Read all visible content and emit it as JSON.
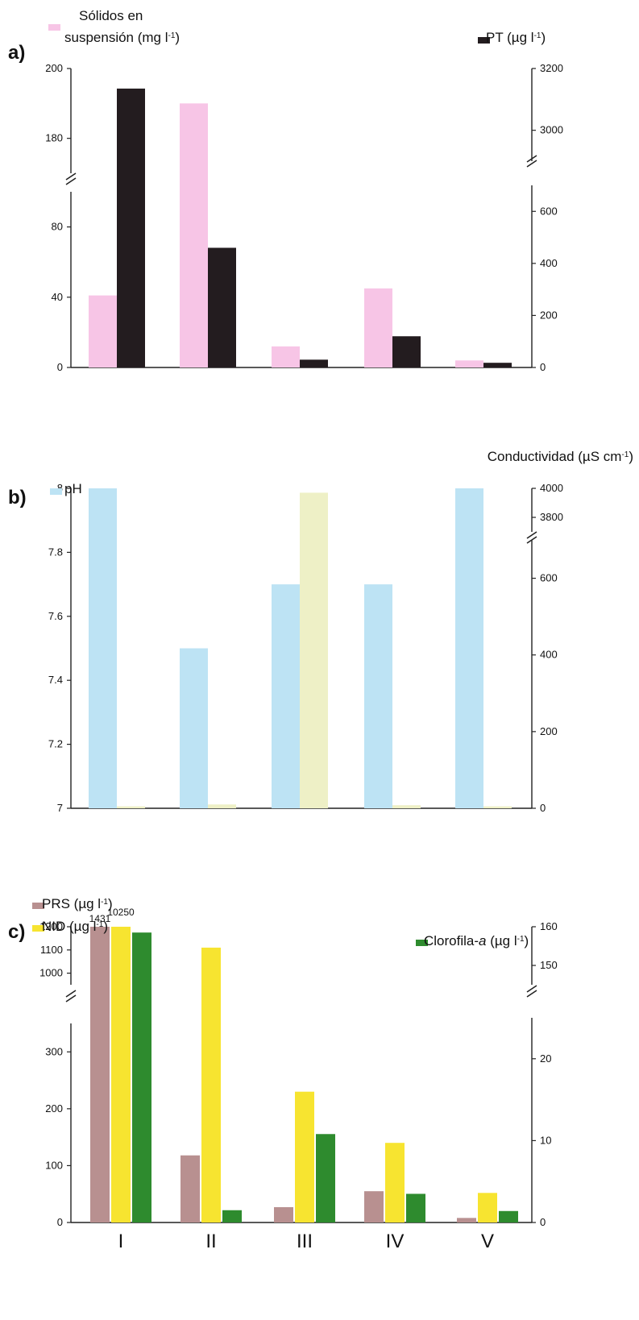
{
  "chart_data": [
    {
      "panel": "a)",
      "type": "bar",
      "categories": [
        "I",
        "II",
        "III",
        "IV",
        "V"
      ],
      "left_axis": {
        "segments": [
          [
            0,
            100
          ],
          [
            170,
            200
          ]
        ],
        "ticks": [
          0,
          40,
          80,
          180,
          200
        ],
        "broken": true
      },
      "right_axis": {
        "segments": [
          [
            0,
            700
          ],
          [
            2900,
            3200
          ]
        ],
        "ticks": [
          0,
          200,
          400,
          600,
          3000,
          3200
        ],
        "broken": true
      },
      "series": [
        {
          "name_line1": "Sólidos en",
          "name_line2": "suspensión (mg l",
          "name_sup": "-1",
          "name_end": ")",
          "axis": "left",
          "color": "#f7c5e6",
          "values": [
            41,
            190,
            12,
            45,
            4
          ]
        },
        {
          "name": "PT (µg l",
          "name_sup": "-1",
          "name_end": ")",
          "axis": "right",
          "color": "#231c1f",
          "values": [
            3135,
            460,
            30,
            120,
            18
          ]
        }
      ]
    },
    {
      "panel": "b)",
      "type": "bar",
      "categories": [
        "I",
        "II",
        "III",
        "IV",
        "V"
      ],
      "left_axis": {
        "segments": [
          [
            7,
            8
          ]
        ],
        "ticks": [
          "7",
          "7.2",
          "7.4",
          "7.6",
          "7.8",
          "8"
        ],
        "broken": false
      },
      "right_axis": {
        "segments": [
          [
            0,
            700
          ],
          [
            3700,
            4000
          ]
        ],
        "ticks": [
          0,
          200,
          400,
          600,
          3800,
          4000
        ],
        "broken": true
      },
      "series": [
        {
          "name": "pH",
          "axis": "left",
          "color": "#bde3f4",
          "values": [
            8.0,
            7.5,
            7.7,
            7.7,
            8.0
          ]
        },
        {
          "name": "Conductividad (µS cm",
          "name_sup": "-1",
          "name_end": ")",
          "axis": "right",
          "color": "#eef0c6",
          "values": [
            5,
            10,
            3970,
            8,
            5
          ]
        }
      ]
    },
    {
      "panel": "c)",
      "type": "bar",
      "categories": [
        "I",
        "II",
        "III",
        "IV",
        "V"
      ],
      "left_axis": {
        "segments": [
          [
            0,
            350
          ],
          [
            950,
            1200
          ]
        ],
        "ticks": [
          0,
          100,
          200,
          300,
          1000,
          1100,
          1200
        ],
        "broken": true
      },
      "right_axis": {
        "segments": [
          [
            0,
            25
          ],
          [
            145,
            160
          ]
        ],
        "ticks": [
          0,
          10,
          20,
          150,
          160
        ],
        "broken": true
      },
      "annotations": [
        {
          "series": 0,
          "category": "I",
          "text": "1431"
        },
        {
          "series": 1,
          "category": "I",
          "text": "10250"
        }
      ],
      "series": [
        {
          "name": "PRS (µg l",
          "name_sup": "-1",
          "name_end": ")",
          "axis": "left",
          "color": "#b89090",
          "values": [
            1200,
            118,
            27,
            55,
            8
          ]
        },
        {
          "name": "NID (µg l",
          "name_sup": "-1",
          "name_end": ")",
          "axis": "left",
          "color": "#f7e430",
          "values": [
            1225,
            1110,
            230,
            140,
            52
          ]
        },
        {
          "name": "Clorofila-",
          "name_italic": "a",
          "name_tail": " (µg l",
          "name_sup": "-1",
          "name_end": ")",
          "axis": "right",
          "color": "#2e8b2e",
          "values": [
            158.5,
            1.5,
            10.8,
            3.5,
            1.4
          ]
        }
      ]
    }
  ],
  "colors": {
    "axis": "#222222",
    "text": "#111111"
  }
}
